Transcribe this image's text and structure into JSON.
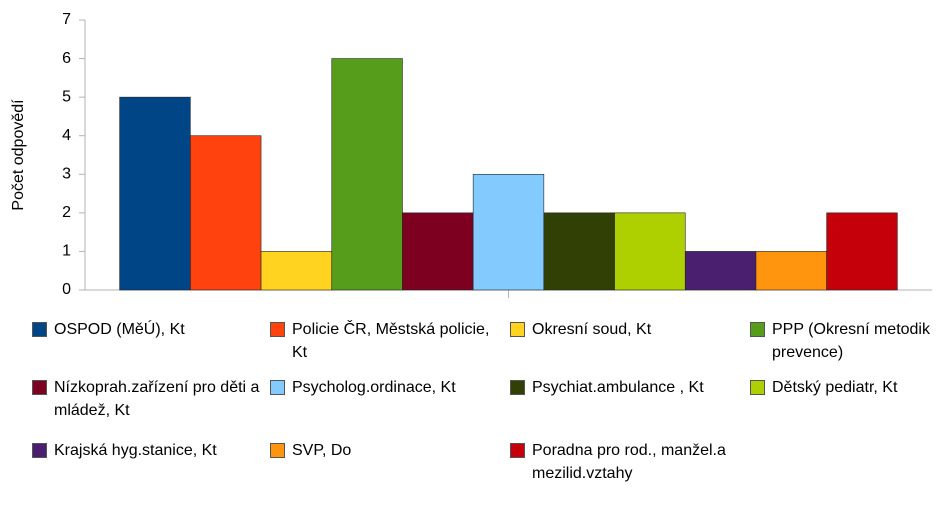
{
  "chart_data": {
    "type": "bar",
    "y_label": "Počet odpovědí",
    "categories": [
      null
    ],
    "series": [
      {
        "name": "OSPOD (MěÚ), Kt",
        "color": "#004586",
        "values": [
          5
        ]
      },
      {
        "name": "Policie ČR, Městská policie, Kt",
        "color": "#ff420e",
        "values": [
          4
        ]
      },
      {
        "name": "Okresní soud, Kt",
        "color": "#ffd320",
        "values": [
          1
        ]
      },
      {
        "name": "PPP (Okresní metodik prevence)",
        "color": "#579d1c",
        "values": [
          6
        ]
      },
      {
        "name": "Nízkoprah.zařízení pro děti a mládež, Kt",
        "color": "#7e0021",
        "values": [
          2
        ]
      },
      {
        "name": "Psycholog.ordinace, Kt",
        "color": "#83caff",
        "values": [
          3
        ]
      },
      {
        "name": "Psychiat.ambulance , Kt",
        "color": "#314004",
        "values": [
          2
        ]
      },
      {
        "name": "Dětský pediatr, Kt",
        "color": "#aecf00",
        "values": [
          2
        ]
      },
      {
        "name": "Krajská hyg.stanice, Kt",
        "color": "#4b1f6f",
        "values": [
          1
        ]
      },
      {
        "name": "SVP, Do",
        "color": "#ff950e",
        "values": [
          1
        ]
      },
      {
        "name": "Poradna pro rod., manžel.a mezilid.vztahy",
        "color": "#c5000b",
        "values": [
          2
        ]
      }
    ],
    "ylim": [
      0,
      7
    ],
    "yticks": [
      0,
      1,
      2,
      3,
      4,
      5,
      6,
      7
    ],
    "grid": false
  }
}
